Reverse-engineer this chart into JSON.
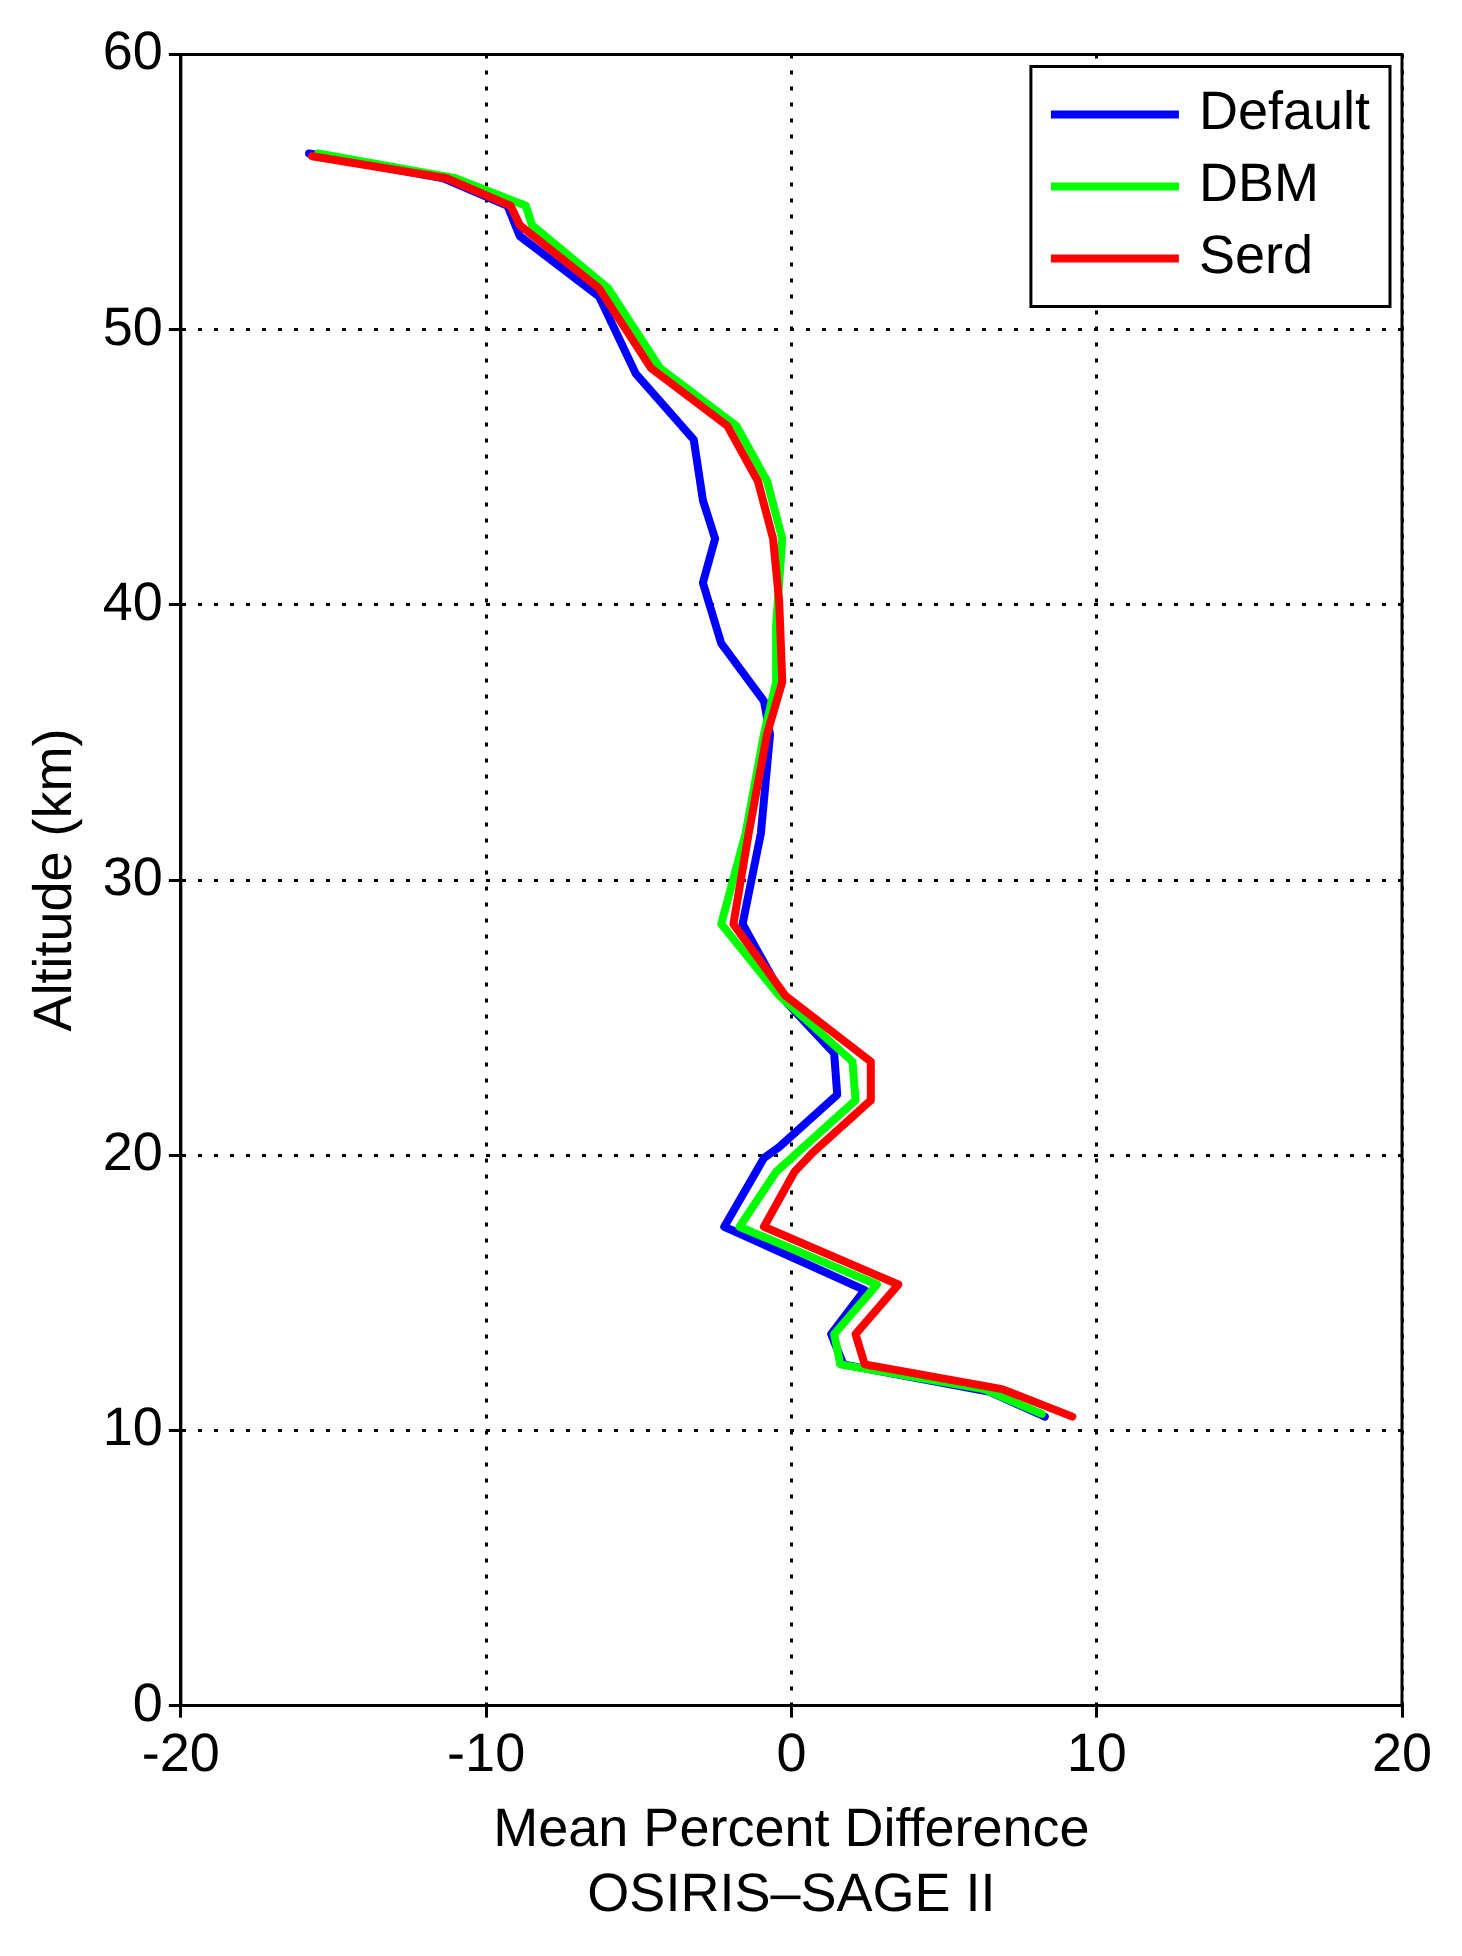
{
  "chart_data": {
    "type": "line",
    "xlabel": "Mean Percent Difference\nOSIRIS–SAGE II",
    "ylabel": "Altitude (km)",
    "xlim": [
      -20,
      20
    ],
    "xticks": [
      -20,
      -10,
      0,
      10,
      20
    ],
    "ylim": [
      0,
      60
    ],
    "yticks": [
      0,
      10,
      20,
      30,
      40,
      50,
      60
    ],
    "grid": true,
    "legend": "top right",
    "marker": "none",
    "line_style": "solid",
    "series": [
      {
        "name": "Default",
        "color": "#0000ff",
        "x": [
          -15.8,
          -11.4,
          -9.3,
          -8.9,
          -6.3,
          -5.1,
          -3.2,
          -2.9,
          -2.5,
          -2.9,
          -2.3,
          -0.9,
          -0.7,
          -1.0,
          -1.6,
          -0.2,
          1.4,
          1.5,
          -0.4,
          -0.9,
          -2.2,
          2.4,
          1.3,
          1.7,
          6.5,
          8.3
        ],
        "values": [
          56.4,
          55.5,
          54.5,
          53.4,
          51.2,
          48.4,
          46.0,
          43.8,
          42.4,
          40.8,
          38.6,
          36.5,
          35.3,
          31.7,
          28.4,
          25.6,
          23.7,
          22.2,
          20.3,
          19.9,
          17.4,
          15.1,
          13.5,
          12.4,
          11.4,
          10.5
        ]
      },
      {
        "name": "DBM",
        "color": "#00ff00",
        "x": [
          -15.5,
          -11.0,
          -8.7,
          -8.5,
          -6.0,
          -4.3,
          -1.8,
          -0.8,
          -0.3,
          -0.5,
          -0.5,
          -0.9,
          -1.5,
          -2.3,
          -0.4,
          2.0,
          2.1,
          0.2,
          -0.5,
          -1.7,
          2.8,
          1.4,
          1.6,
          6.3,
          8.2
        ],
        "values": [
          56.4,
          55.5,
          54.5,
          53.8,
          51.5,
          48.6,
          46.5,
          44.5,
          42.4,
          39.3,
          37.2,
          35.3,
          31.7,
          28.4,
          25.8,
          23.4,
          22.0,
          20.1,
          19.4,
          17.4,
          15.3,
          13.5,
          12.4,
          11.5,
          10.6
        ]
      },
      {
        "name": "Serd",
        "color": "#ff0000",
        "x": [
          -15.7,
          -11.3,
          -9.2,
          -8.9,
          -6.3,
          -4.6,
          -2.1,
          -1.1,
          -0.6,
          -0.4,
          -0.3,
          -0.8,
          -1.4,
          -1.9,
          -0.2,
          2.6,
          2.6,
          0.7,
          0.1,
          -0.9,
          3.5,
          2.1,
          2.4,
          6.9,
          9.2
        ],
        "values": [
          56.3,
          55.5,
          54.5,
          53.8,
          51.5,
          48.6,
          46.5,
          44.5,
          42.4,
          40.1,
          37.2,
          35.3,
          31.7,
          28.4,
          25.8,
          23.4,
          22.0,
          20.1,
          19.4,
          17.4,
          15.3,
          13.5,
          12.4,
          11.5,
          10.5
        ]
      }
    ]
  }
}
